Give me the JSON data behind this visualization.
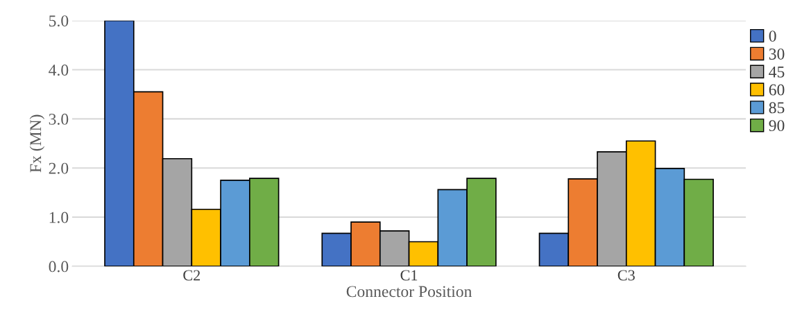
{
  "chart_data": {
    "type": "bar",
    "xlabel": "Connector Position",
    "ylabel": "Fx (MN)",
    "categories": [
      "C2",
      "C1",
      "C3"
    ],
    "series": [
      {
        "name": "0",
        "color": "#4472c4",
        "values": [
          5.0,
          0.67,
          0.67
        ]
      },
      {
        "name": "30",
        "color": "#ed7d31",
        "values": [
          3.55,
          0.9,
          1.78
        ]
      },
      {
        "name": "45",
        "color": "#a5a5a5",
        "values": [
          2.19,
          0.72,
          2.33
        ]
      },
      {
        "name": "60",
        "color": "#ffc000",
        "values": [
          1.16,
          0.5,
          2.55
        ]
      },
      {
        "name": "85",
        "color": "#5b9bd5",
        "values": [
          1.75,
          1.56,
          1.99
        ]
      },
      {
        "name": "90",
        "color": "#70ad47",
        "values": [
          1.79,
          1.79,
          1.77
        ]
      }
    ],
    "ylim": [
      0,
      5
    ],
    "yticks": [
      {
        "value": 0,
        "label": "0.0"
      },
      {
        "value": 1,
        "label": "1.0"
      },
      {
        "value": 2,
        "label": "2.0"
      },
      {
        "value": 3,
        "label": "3.0"
      },
      {
        "value": 4,
        "label": "4.0"
      },
      {
        "value": 5,
        "label": "5.0"
      }
    ],
    "grid": "y",
    "legend": "right"
  }
}
